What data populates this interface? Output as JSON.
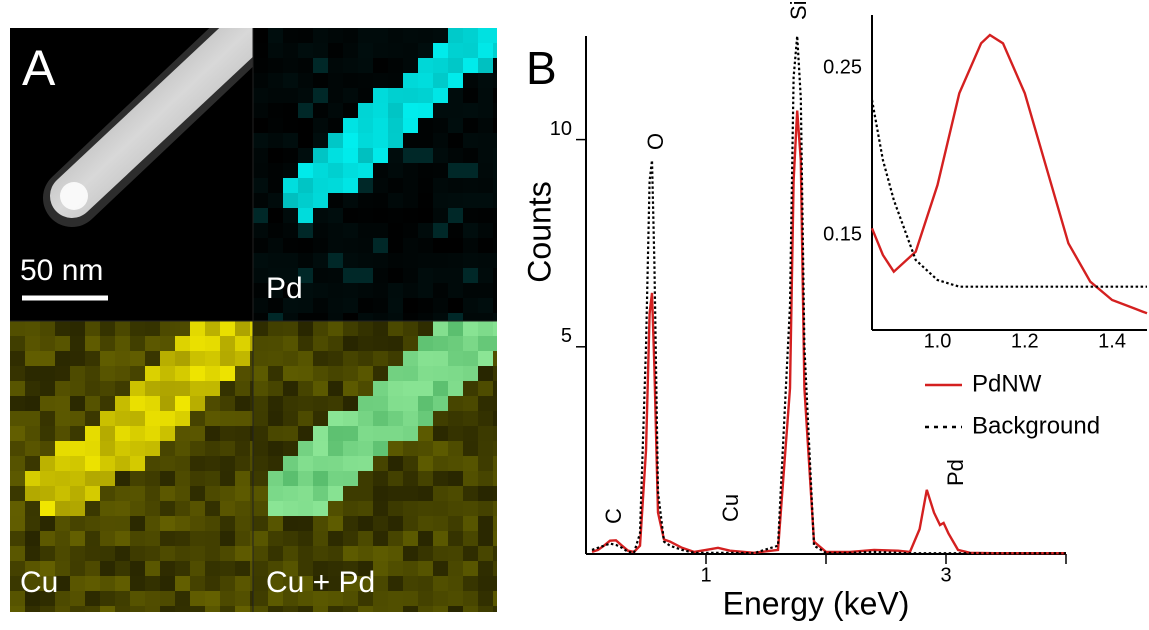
{
  "panel_a": {
    "label": "A",
    "scale_bar": "50 nm",
    "tiles": [
      "Pd",
      "Cu",
      "Cu + Pd"
    ]
  },
  "chart_data": [
    {
      "type": "line",
      "panel_label": "B",
      "xlabel": "Energy (keV)",
      "ylabel": "Counts",
      "xlim": [
        0,
        4
      ],
      "ylim": [
        0,
        12.5
      ],
      "xticks": [
        1,
        3
      ],
      "xminor_ticks": [
        2,
        4
      ],
      "yticks": [
        5,
        10
      ],
      "annotations": [
        "C",
        "O",
        "Cu",
        "Si",
        "Pd"
      ],
      "legend": "lower right",
      "x": [
        0.05,
        0.1,
        0.15,
        0.2,
        0.25,
        0.3,
        0.35,
        0.4,
        0.45,
        0.5,
        0.53,
        0.55,
        0.57,
        0.6,
        0.65,
        0.7,
        0.8,
        0.9,
        1.0,
        1.1,
        1.2,
        1.4,
        1.6,
        1.7,
        1.73,
        1.76,
        1.79,
        1.82,
        1.9,
        2.0,
        2.2,
        2.4,
        2.6,
        2.7,
        2.78,
        2.84,
        2.9,
        2.95,
        2.98,
        3.02,
        3.1,
        3.2,
        3.4,
        3.8,
        4.0
      ],
      "series": [
        {
          "name": "PdNW",
          "color": "#d42020",
          "line_style": "solid",
          "values": [
            0.05,
            0.1,
            0.2,
            0.32,
            0.33,
            0.2,
            0.08,
            0.05,
            0.2,
            2.5,
            5.8,
            6.3,
            4.5,
            1.0,
            0.35,
            0.3,
            0.15,
            0.05,
            0.1,
            0.15,
            0.08,
            0.03,
            0.1,
            4.0,
            9.0,
            10.7,
            9.5,
            4.0,
            0.3,
            0.05,
            0.05,
            0.1,
            0.08,
            0.05,
            0.6,
            1.55,
            1.0,
            0.7,
            0.75,
            0.5,
            0.1,
            0.03,
            0.02,
            0.02,
            0.02
          ]
        },
        {
          "name": "Background",
          "color": "#000000",
          "line_style": "dotted",
          "values": [
            0.1,
            0.15,
            0.2,
            0.25,
            0.22,
            0.15,
            0.05,
            0.03,
            0.5,
            5.0,
            9.0,
            9.5,
            7.0,
            1.5,
            0.3,
            0.2,
            0.1,
            0.03,
            0.03,
            0.03,
            0.03,
            0.02,
            0.2,
            6.0,
            11.5,
            12.5,
            11.0,
            5.0,
            0.2,
            0.03,
            0.03,
            0.05,
            0.03,
            0.02,
            0.02,
            0.02,
            0.02,
            0.02,
            0.02,
            0.02,
            0.02,
            0.02,
            0.02,
            0.02,
            0.02
          ]
        }
      ]
    },
    {
      "type": "line",
      "xlim": [
        0.85,
        1.48
      ],
      "ylim": [
        0.093,
        0.282
      ],
      "xticks": [
        {
          "value": 1.0,
          "label": "1.0"
        },
        {
          "value": 1.2,
          "label": "1.2"
        },
        {
          "value": 1.4,
          "label": "1.4"
        }
      ],
      "yticks": [
        0.15,
        0.25
      ],
      "x": [
        0.85,
        0.875,
        0.9,
        0.95,
        1.0,
        1.05,
        1.1,
        1.12,
        1.15,
        1.2,
        1.25,
        1.3,
        1.35,
        1.4,
        1.45,
        1.48
      ],
      "series": [
        {
          "color": "#d42020",
          "line_style": "solid",
          "values": [
            0.154,
            0.138,
            0.128,
            0.14,
            0.18,
            0.235,
            0.265,
            0.27,
            0.265,
            0.235,
            0.19,
            0.145,
            0.122,
            0.111,
            0.106,
            0.103
          ]
        },
        {
          "color": "#000000",
          "line_style": "dotted",
          "values": [
            0.231,
            0.195,
            0.171,
            0.135,
            0.123,
            0.119,
            0.119,
            0.119,
            0.119,
            0.119,
            0.119,
            0.119,
            0.119,
            0.119,
            0.119,
            0.119
          ]
        }
      ]
    }
  ]
}
